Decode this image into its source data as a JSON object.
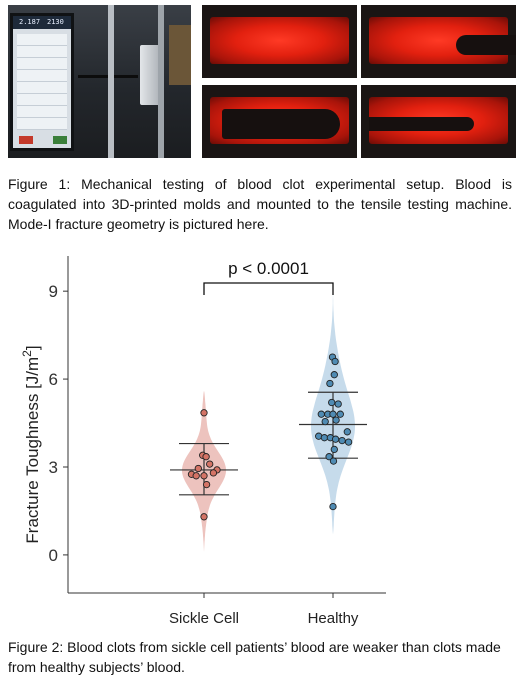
{
  "figure1": {
    "caption": "Figure 1: Mechanical testing of blood clot experimental setup. Blood is coagulated into 3D-printed molds and mounted to the tensile testing machine. Mode-I fracture geometry is pictured here.",
    "monitor_readout_1": "2.187",
    "monitor_readout_2": "2130"
  },
  "figure2": {
    "caption": "Figure 2: Blood clots from sickle cell patients’ blood are weaker than clots made from healthy subjects’ blood."
  },
  "chart_data": {
    "type": "scatter",
    "plot_style": "violin with individual points and mean ± SD error bars",
    "title": "",
    "ylabel": "Fracture Toughness [J/m",
    "ylabel_superscript": "2",
    "ylabel_suffix": "]",
    "ylim": [
      -1.3,
      10.2
    ],
    "yticks": [
      0,
      3,
      6,
      9
    ],
    "grid": false,
    "categories": [
      "Sickle Cell",
      "Healthy"
    ],
    "significance": {
      "text": "p < 0.0001",
      "between": [
        "Sickle Cell",
        "Healthy"
      ]
    },
    "series": [
      {
        "name": "Sickle Cell",
        "fill_color": "#e8b4ae",
        "point_color": "#d47466",
        "mean": 2.9,
        "sd_low": 2.05,
        "sd_high": 3.8,
        "violin_range": [
          0.1,
          5.6
        ],
        "points": [
          {
            "y": 4.85,
            "j": 0.0
          },
          {
            "y": 3.4,
            "j": -0.05
          },
          {
            "y": 3.35,
            "j": 0.08
          },
          {
            "y": 3.1,
            "j": 0.22
          },
          {
            "y": 2.95,
            "j": -0.22
          },
          {
            "y": 2.9,
            "j": 0.5
          },
          {
            "y": 2.8,
            "j": 0.36
          },
          {
            "y": 2.75,
            "j": -0.48
          },
          {
            "y": 2.7,
            "j": -0.3
          },
          {
            "y": 2.7,
            "j": 0.0
          },
          {
            "y": 2.4,
            "j": 0.1
          },
          {
            "y": 1.3,
            "j": 0.0
          }
        ]
      },
      {
        "name": "Healthy",
        "fill_color": "#b8d2e6",
        "point_color": "#4f8bb3",
        "mean": 4.45,
        "sd_low": 3.3,
        "sd_high": 5.55,
        "violin_range": [
          0.7,
          9.1
        ],
        "points": [
          {
            "y": 6.75,
            "j": -0.02
          },
          {
            "y": 6.6,
            "j": 0.08
          },
          {
            "y": 6.15,
            "j": 0.05
          },
          {
            "y": 5.85,
            "j": -0.12
          },
          {
            "y": 5.2,
            "j": -0.05
          },
          {
            "y": 5.15,
            "j": 0.2
          },
          {
            "y": 4.8,
            "j": -0.45
          },
          {
            "y": 4.8,
            "j": -0.2
          },
          {
            "y": 4.8,
            "j": 0.0
          },
          {
            "y": 4.8,
            "j": 0.28
          },
          {
            "y": 4.6,
            "j": 0.12
          },
          {
            "y": 4.55,
            "j": -0.3
          },
          {
            "y": 4.2,
            "j": 0.55
          },
          {
            "y": 4.05,
            "j": -0.55
          },
          {
            "y": 4.0,
            "j": -0.33
          },
          {
            "y": 4.0,
            "j": -0.1
          },
          {
            "y": 3.95,
            "j": 0.1
          },
          {
            "y": 3.9,
            "j": 0.35
          },
          {
            "y": 3.85,
            "j": 0.6
          },
          {
            "y": 3.6,
            "j": 0.05
          },
          {
            "y": 3.35,
            "j": -0.15
          },
          {
            "y": 3.2,
            "j": 0.02
          },
          {
            "y": 1.65,
            "j": 0.0
          }
        ]
      }
    ]
  }
}
